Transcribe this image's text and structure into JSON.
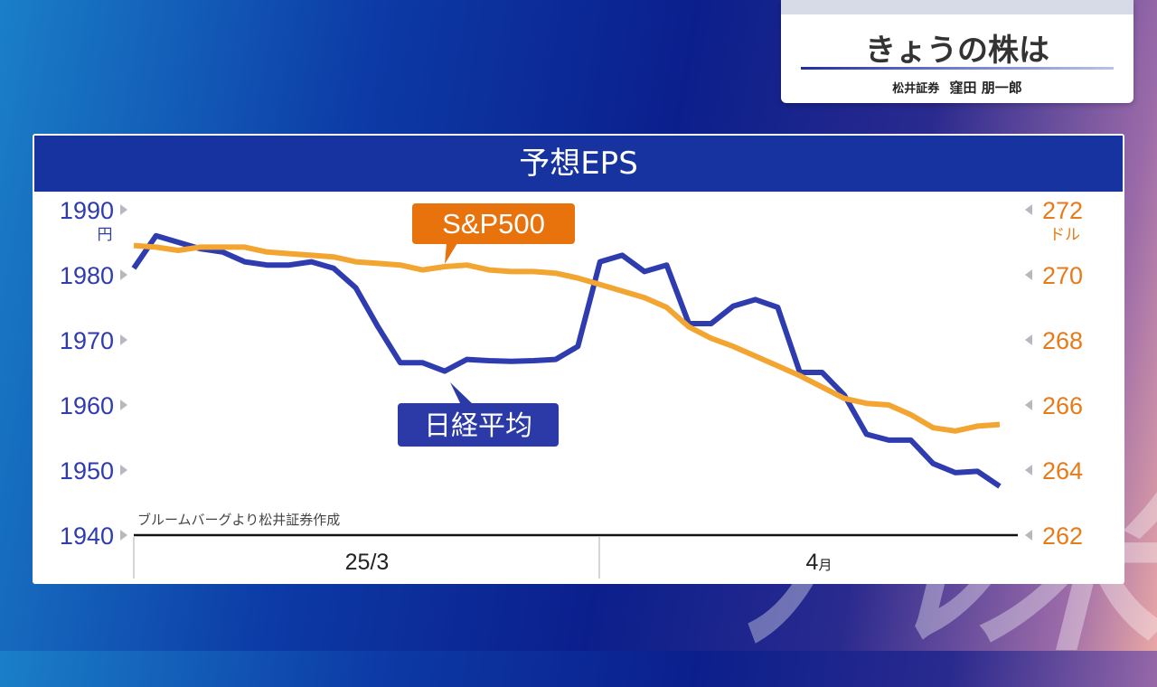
{
  "topic": {
    "title": "きょうの株は",
    "firm": "松井証券",
    "person": "窪田 朋一郎"
  },
  "colors": {
    "nikkei": "#2e3cb0",
    "sp500": "#f2a531",
    "left_axis_text": "#2e3cb0",
    "right_axis_text": "#e87a18",
    "header_bg": "#1633a0",
    "callout_sp500_bg": "#e8720c",
    "callout_nikkei_bg": "#2b3aa6"
  },
  "chart_data": {
    "type": "line",
    "title": "予想EPS",
    "source_note": "ブルームバーグより松井証券作成",
    "x_tick_labels": [
      {
        "label": "25/3",
        "unit": ""
      },
      {
        "label": "4",
        "unit": "月"
      }
    ],
    "left_axis": {
      "unit": "円",
      "ticks": [
        "1990",
        "1980",
        "1970",
        "1960",
        "1950",
        "1940"
      ],
      "range": [
        1940,
        1990
      ]
    },
    "right_axis": {
      "unit": "ドル",
      "ticks": [
        "272",
        "270",
        "268",
        "266",
        "264",
        "262"
      ],
      "range": [
        262,
        272
      ]
    },
    "series": [
      {
        "name": "日経平均",
        "axis": "left",
        "color": "#2e3cb0",
        "values": [
          1981,
          1986,
          1985,
          1984,
          1983.5,
          1982,
          1981.5,
          1981.5,
          1982,
          1981,
          1978,
          1972,
          1966.5,
          1966.5,
          1965.2,
          1967,
          1966.8,
          1966.7,
          1966.8,
          1967,
          1969,
          1982,
          1983,
          1980.5,
          1981.5,
          1972.5,
          1972.5,
          1975.2,
          1976.2,
          1975,
          1965,
          1965,
          1961.5,
          1955.5,
          1954.6,
          1954.6,
          1951,
          1949.6,
          1949.8,
          1947.5
        ]
      },
      {
        "name": "S&P500",
        "axis": "right",
        "color": "#f2a531",
        "values": [
          270.9,
          270.85,
          270.75,
          270.85,
          270.85,
          270.85,
          270.7,
          270.65,
          270.6,
          270.55,
          270.4,
          270.35,
          270.3,
          270.15,
          270.25,
          270.3,
          270.15,
          270.1,
          270.1,
          270.05,
          269.9,
          269.7,
          269.5,
          269.3,
          269.0,
          268.4,
          268.05,
          267.8,
          267.5,
          267.2,
          266.9,
          266.55,
          266.2,
          266.05,
          266.0,
          265.7,
          265.3,
          265.2,
          265.35,
          265.4
        ]
      }
    ]
  }
}
